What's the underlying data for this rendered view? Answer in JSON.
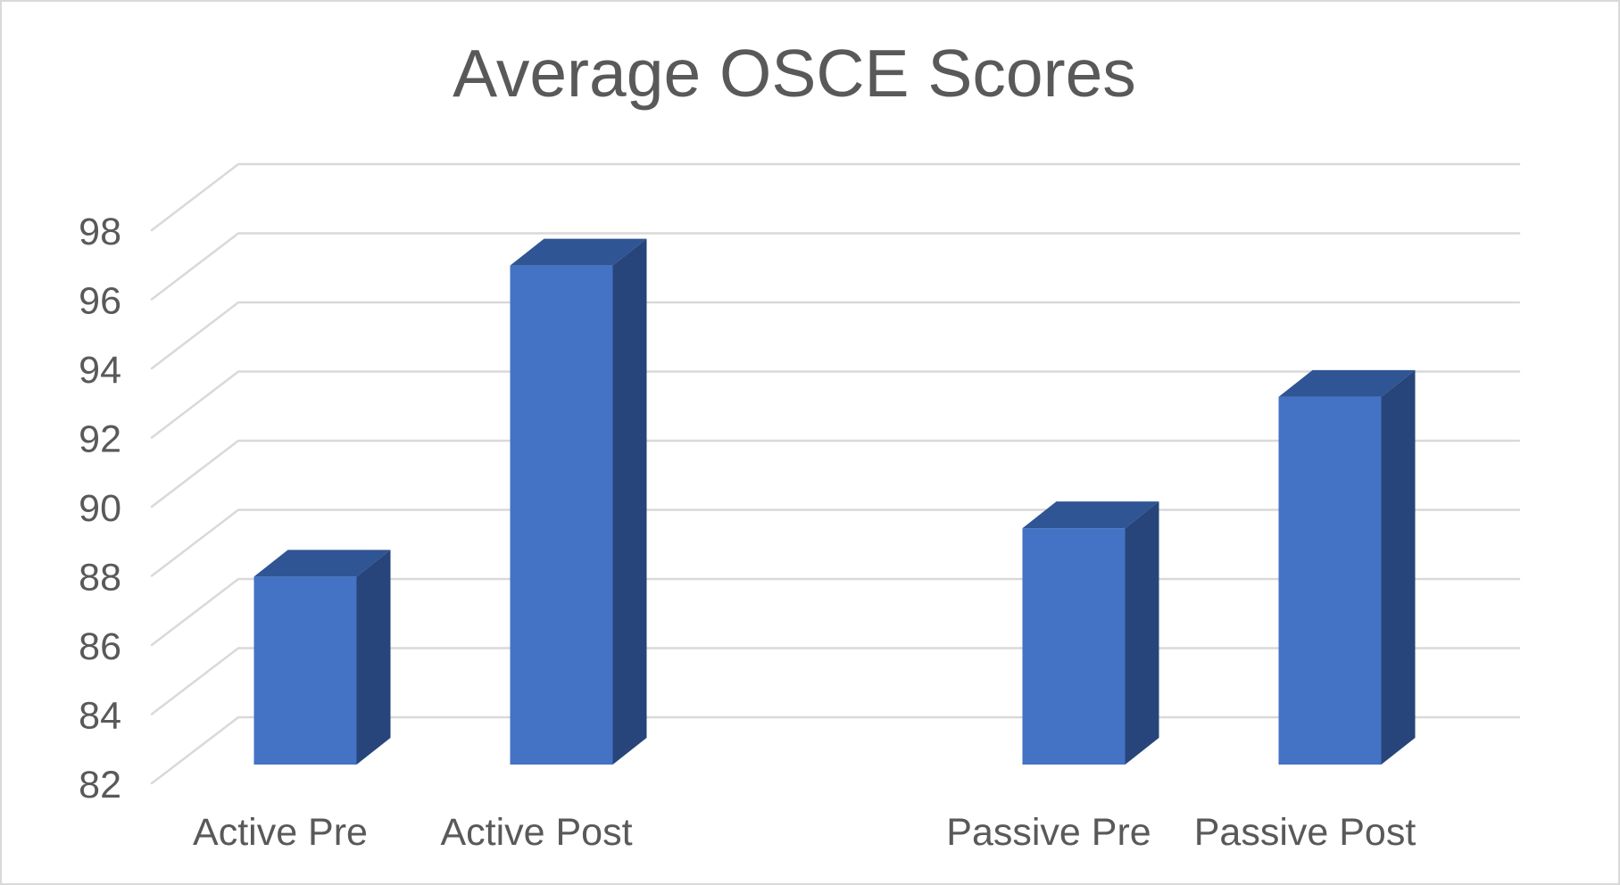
{
  "chart_data": {
    "type": "bar",
    "variant": "3d-column",
    "title": "Average OSCE Scores",
    "categories": [
      "Active Pre",
      "Active Post",
      "",
      "Passive Pre",
      "Passive Post"
    ],
    "values": [
      87.5,
      96.5,
      null,
      88.9,
      92.7
    ],
    "ylim": [
      82,
      98
    ],
    "ytick_step": 2,
    "yticks": [
      98,
      96,
      94,
      92,
      90,
      88,
      86,
      84,
      82
    ],
    "grid": true,
    "legend": "none",
    "colors": {
      "bar_front": "#4472C4",
      "bar_top": "#2F5595",
      "bar_side": "#27457A",
      "gridline": "#D9D9D9",
      "text": "#595959",
      "background": "#FFFFFF",
      "frame_border": "#D9D9D9"
    }
  }
}
